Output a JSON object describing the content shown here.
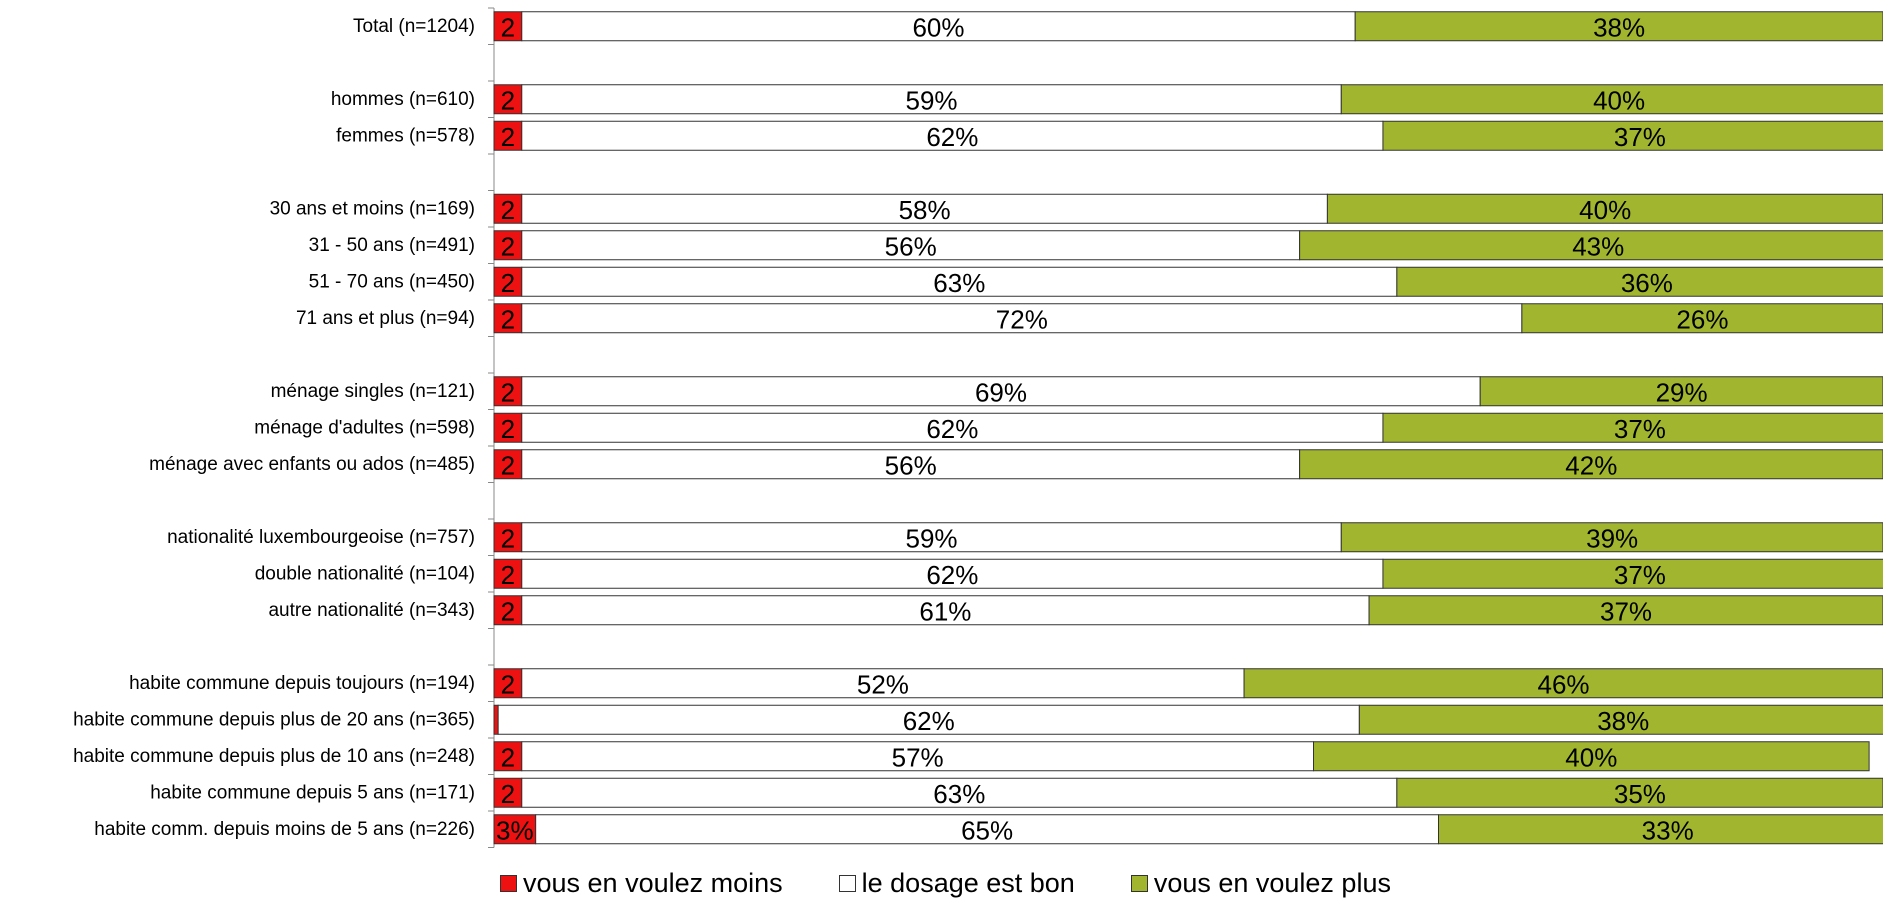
{
  "chart_data": {
    "type": "bar",
    "orientation": "horizontal",
    "stacked": "percent",
    "categories": [
      "Total (n=1204)",
      "",
      "hommes (n=610)",
      "femmes (n=578)",
      "",
      "30 ans et moins (n=169)",
      "31 - 50 ans (n=491)",
      "51 - 70 ans (n=450)",
      "71 ans et plus (n=94)",
      "",
      "ménage singles (n=121)",
      "ménage d'adultes (n=598)",
      "ménage avec enfants ou ados (n=485)",
      "",
      "nationalité luxembourgeoise (n=757)",
      "double nationalité (n=104)",
      "autre nationalité (n=343)",
      "",
      "habite commune depuis toujours (n=194)",
      "habite commune depuis plus de 20 ans (n=365)",
      "habite commune depuis plus de 10 ans (n=248)",
      "habite commune depuis 5 ans (n=171)",
      "habite comm. depuis moins de 5 ans (n=226)"
    ],
    "series": [
      {
        "name": "vous en voulez moins",
        "color": "#ee1111",
        "values": [
          2,
          null,
          2,
          2,
          null,
          2,
          2,
          2,
          2,
          null,
          2,
          2,
          2,
          null,
          2,
          2,
          2,
          null,
          2,
          0.3,
          2,
          2,
          3
        ],
        "labels": [
          "2",
          "",
          "2",
          "2",
          "",
          "2",
          "2",
          "2",
          "2",
          "",
          "2",
          "2",
          "2",
          "",
          "2",
          "2",
          "2",
          "",
          "2",
          "",
          "2",
          "2",
          "3%"
        ]
      },
      {
        "name": "le dosage est bon",
        "color": "#ffffff",
        "values": [
          60,
          null,
          59,
          62,
          null,
          58,
          56,
          63,
          72,
          null,
          69,
          62,
          56,
          null,
          59,
          62,
          61,
          null,
          52,
          62,
          57,
          63,
          65
        ],
        "labels": [
          "60%",
          "",
          "59%",
          "62%",
          "",
          "58%",
          "56%",
          "63%",
          "72%",
          "",
          "69%",
          "62%",
          "56%",
          "",
          "59%",
          "62%",
          "61%",
          "",
          "52%",
          "62%",
          "57%",
          "63%",
          "65%"
        ]
      },
      {
        "name": "vous en voulez plus",
        "color": "#a2b52e",
        "values": [
          38,
          null,
          40,
          37,
          null,
          40,
          43,
          36,
          26,
          null,
          29,
          37,
          42,
          null,
          39,
          37,
          37,
          null,
          46,
          38,
          40,
          35,
          33
        ],
        "labels": [
          "38%",
          "",
          "40%",
          "37%",
          "",
          "40%",
          "43%",
          "36%",
          "26%",
          "",
          "29%",
          "37%",
          "42%",
          "",
          "39%",
          "37%",
          "37%",
          "",
          "46%",
          "38%",
          "40%",
          "35%",
          "33%"
        ]
      }
    ],
    "xlim": [
      0,
      100
    ],
    "grid": false,
    "legend_position": "bottom"
  },
  "legend": {
    "items": [
      {
        "label": "vous en voulez moins",
        "color": "#ee1111"
      },
      {
        "label": "le dosage est bon",
        "color": "#ffffff"
      },
      {
        "label": "vous en voulez plus",
        "color": "#a2b52e"
      }
    ]
  }
}
